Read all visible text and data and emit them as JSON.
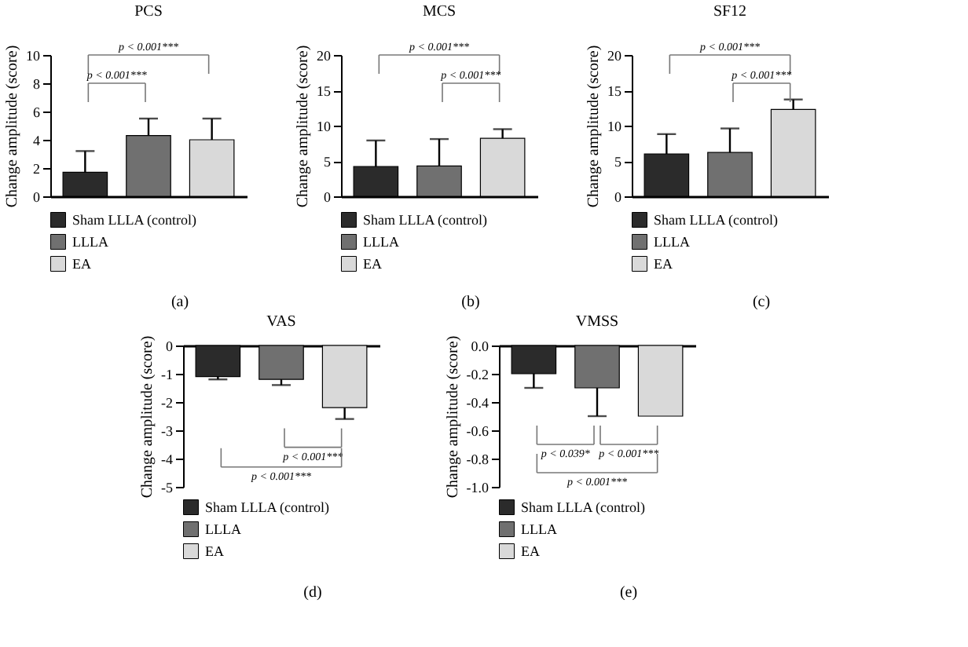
{
  "chart_data": [
    {
      "type": "bar",
      "title": "PCS",
      "ylabel": "Change amplitude (score)",
      "categories": [
        null
      ],
      "ylim": [
        0,
        10
      ],
      "yticks": [
        0,
        2,
        4,
        6,
        8,
        10
      ],
      "legend": "bottom",
      "series": [
        {
          "name": "Sham LLLA (control)",
          "color": "#2b2b2b",
          "values": [
            1.7
          ],
          "errors": [
            [
              1.7,
              3.2
            ]
          ]
        },
        {
          "name": "LLLA",
          "color": "#707070",
          "values": [
            4.3
          ],
          "errors": [
            [
              4.3,
              5.5
            ]
          ]
        },
        {
          "name": "EA",
          "color": "#d9d9d9",
          "values": [
            4.0
          ],
          "errors": [
            [
              4.0,
              5.5
            ]
          ]
        }
      ],
      "annotations": [
        "p < 0.001***",
        "p < 0.001***",
        "(a)"
      ]
    },
    {
      "type": "bar",
      "title": "MCS",
      "ylabel": "Change amplitude (score)",
      "categories": [
        null
      ],
      "ylim": [
        0,
        20
      ],
      "yticks": [
        0,
        5,
        10,
        15,
        20
      ],
      "legend": "bottom",
      "series": [
        {
          "name": "Sham LLLA (control)",
          "color": "#2b2b2b",
          "values": [
            4.2
          ],
          "errors": [
            [
              4.2,
              7.9
            ]
          ]
        },
        {
          "name": "LLLA",
          "color": "#707070",
          "values": [
            4.3
          ],
          "errors": [
            [
              4.3,
              8.1
            ]
          ]
        },
        {
          "name": "EA",
          "color": "#d9d9d9",
          "values": [
            8.2
          ],
          "errors": [
            [
              8.2,
              9.5
            ]
          ]
        }
      ],
      "annotations": [
        "p < 0.001***",
        "p < 0.001***",
        "(b)"
      ]
    },
    {
      "type": "bar",
      "title": "SF12",
      "ylabel": "Change amplitude (score)",
      "categories": [
        null
      ],
      "ylim": [
        0,
        20
      ],
      "yticks": [
        0,
        5,
        10,
        15,
        20
      ],
      "legend": "bottom",
      "series": [
        {
          "name": "Sham LLLA (control)",
          "color": "#2b2b2b",
          "values": [
            6.0
          ],
          "errors": [
            [
              6.0,
              8.8
            ]
          ]
        },
        {
          "name": "LLLA",
          "color": "#707070",
          "values": [
            6.2
          ],
          "errors": [
            [
              6.2,
              9.6
            ]
          ]
        },
        {
          "name": "EA",
          "color": "#d9d9d9",
          "values": [
            12.3
          ],
          "errors": [
            [
              12.3,
              13.7
            ]
          ]
        }
      ],
      "annotations": [
        "p < 0.001***",
        "p < 0.001***",
        "(c)"
      ]
    },
    {
      "type": "bar",
      "title": "VAS",
      "ylabel": "Change amplitude (score)",
      "categories": [
        null
      ],
      "ylim": [
        -5,
        0
      ],
      "yticks": [
        -5,
        -4,
        -3,
        -2,
        -1,
        0
      ],
      "legend": "bottom",
      "series": [
        {
          "name": "Sham LLLA (control)",
          "color": "#2b2b2b",
          "values": [
            -1.1
          ],
          "errors": [
            [
              -1.2,
              -1.1
            ]
          ]
        },
        {
          "name": "LLLA",
          "color": "#707070",
          "values": [
            -1.2
          ],
          "errors": [
            [
              -1.4,
              -1.2
            ]
          ]
        },
        {
          "name": "EA",
          "color": "#d9d9d9",
          "values": [
            -2.2
          ],
          "errors": [
            [
              -2.6,
              -2.2
            ]
          ]
        }
      ],
      "annotations": [
        "p < 0.001***",
        "p < 0.001***",
        "(d)"
      ]
    },
    {
      "type": "bar",
      "title": "VMSS",
      "ylabel": "Change amplitude (score)",
      "categories": [
        null
      ],
      "ylim": [
        -1.0,
        0
      ],
      "yticks": [
        {
          "value": -1.0,
          "label": "-1.0"
        },
        -0.8,
        -0.6,
        -0.4,
        -0.2,
        {
          "value": 0,
          "label": "0.0"
        }
      ],
      "legend": "bottom",
      "series": [
        {
          "name": "Sham LLLA (control)",
          "color": "#2b2b2b",
          "values": [
            -0.2
          ],
          "errors": [
            [
              -0.3,
              -0.2
            ]
          ]
        },
        {
          "name": "LLLA",
          "color": "#707070",
          "values": [
            -0.3
          ],
          "errors": [
            [
              -0.5,
              -0.3
            ]
          ]
        },
        {
          "name": "EA",
          "color": "#d9d9d9",
          "values": [
            -0.5
          ],
          "errors": [
            null
          ]
        }
      ],
      "annotations": [
        "p < 0.039*",
        "p < 0.001***",
        "p < 0.001***",
        "(e)"
      ]
    }
  ]
}
